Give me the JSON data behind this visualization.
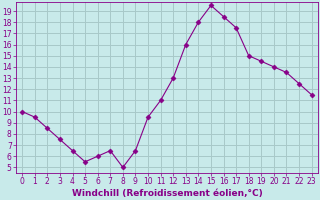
{
  "x": [
    0,
    1,
    2,
    3,
    4,
    5,
    6,
    7,
    8,
    9,
    10,
    11,
    12,
    13,
    14,
    15,
    16,
    17,
    18,
    19,
    20,
    21,
    22,
    23
  ],
  "y": [
    10,
    9.5,
    8.5,
    7.5,
    6.5,
    5.5,
    6.0,
    6.5,
    5.0,
    6.5,
    9.5,
    11.0,
    13.0,
    16.0,
    18.0,
    19.5,
    18.5,
    17.5,
    15.0,
    14.5,
    14.0,
    13.5,
    12.5,
    11.5
  ],
  "line_color": "#880088",
  "marker": "D",
  "marker_size": 2.5,
  "bg_color": "#c8eaea",
  "grid_color": "#a8c8c8",
  "xlabel": "Windchill (Refroidissement éolien,°C)",
  "xlim": [
    -0.5,
    23.5
  ],
  "ylim": [
    4.5,
    19.8
  ],
  "yticks": [
    5,
    6,
    7,
    8,
    9,
    10,
    11,
    12,
    13,
    14,
    15,
    16,
    17,
    18,
    19
  ],
  "xticks": [
    0,
    1,
    2,
    3,
    4,
    5,
    6,
    7,
    8,
    9,
    10,
    11,
    12,
    13,
    14,
    15,
    16,
    17,
    18,
    19,
    20,
    21,
    22,
    23
  ],
  "tick_color": "#880088",
  "label_color": "#880088",
  "xlabel_fontsize": 6.5,
  "tick_fontsize": 5.5
}
